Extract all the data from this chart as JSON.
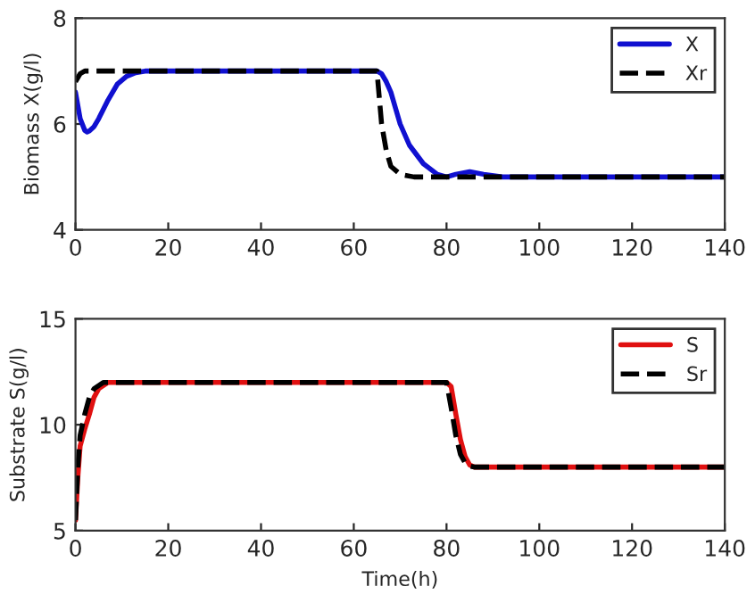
{
  "chart_data": [
    {
      "type": "line",
      "ylabel": "Biomass X(g/l)",
      "xlim": [
        0,
        140
      ],
      "xticks": [
        0,
        20,
        40,
        60,
        80,
        100,
        120,
        140
      ],
      "ylim": [
        4,
        8
      ],
      "yticks": [
        4,
        6,
        8
      ],
      "grid": false,
      "legend": "top right",
      "series": [
        {
          "name": "X",
          "color": "#1010d0",
          "line_style": "solid",
          "x": [
            0,
            1,
            2,
            2.5,
            3,
            4,
            5,
            7,
            9,
            11,
            13,
            15,
            20,
            65,
            66,
            67,
            68,
            69,
            70,
            72,
            75,
            78,
            80,
            82,
            85,
            88,
            92,
            140
          ],
          "values": [
            6.6,
            6.1,
            5.88,
            5.85,
            5.87,
            5.95,
            6.1,
            6.45,
            6.75,
            6.9,
            6.97,
            7.0,
            7.0,
            7.0,
            6.95,
            6.8,
            6.6,
            6.3,
            6.0,
            5.6,
            5.25,
            5.05,
            5.0,
            5.05,
            5.1,
            5.05,
            5.0,
            5.0
          ]
        },
        {
          "name": "Xr",
          "color": "#000000",
          "line_style": "dashed",
          "x": [
            0,
            1,
            2,
            65,
            65.5,
            66,
            67,
            68,
            70,
            73,
            140
          ],
          "values": [
            6.8,
            6.95,
            7.0,
            7.0,
            6.5,
            6.0,
            5.5,
            5.2,
            5.05,
            5.0,
            5.0
          ]
        }
      ]
    },
    {
      "type": "line",
      "xlabel": "Time(h)",
      "ylabel": "Substrate S(g/l)",
      "xlim": [
        0,
        140
      ],
      "xticks": [
        0,
        20,
        40,
        60,
        80,
        100,
        120,
        140
      ],
      "ylim": [
        5,
        15
      ],
      "yticks": [
        5,
        10,
        15
      ],
      "grid": false,
      "legend": "top right",
      "series": [
        {
          "name": "S",
          "color": "#e01010",
          "line_style": "solid",
          "x": [
            0,
            0.5,
            1,
            2,
            3,
            4,
            5,
            7,
            80,
            81,
            82,
            83,
            84,
            85,
            86,
            140
          ],
          "values": [
            5.5,
            7.5,
            9.0,
            9.8,
            10.5,
            11.3,
            11.7,
            12.0,
            12.0,
            11.8,
            10.5,
            9.3,
            8.5,
            8.1,
            8.0,
            8.0
          ]
        },
        {
          "name": "Sr",
          "color": "#000000",
          "line_style": "dashed",
          "x": [
            0,
            0.5,
            1,
            2,
            3,
            4,
            6,
            80,
            81,
            82,
            83,
            84,
            85,
            86,
            140
          ],
          "values": [
            5.5,
            8.0,
            9.5,
            10.5,
            11.3,
            11.7,
            12.0,
            12.0,
            10.8,
            9.5,
            8.6,
            8.2,
            8.05,
            8.0,
            8.0
          ]
        }
      ]
    }
  ]
}
